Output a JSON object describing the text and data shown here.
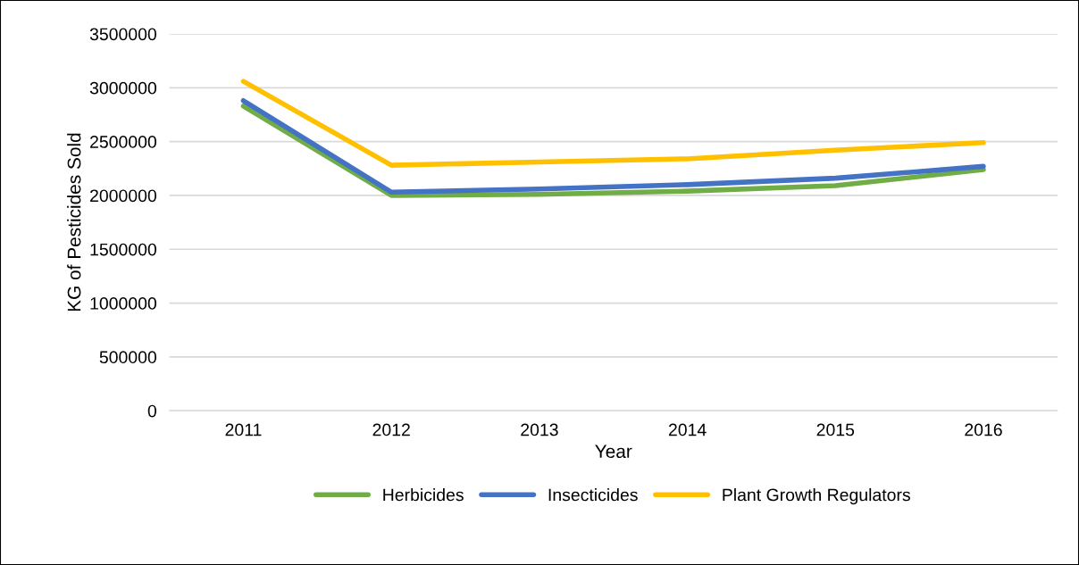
{
  "chart_data": {
    "type": "line",
    "xlabel": "Year",
    "ylabel": "KG of Pesticides Sold",
    "categories": [
      "2011",
      "2012",
      "2013",
      "2014",
      "2015",
      "2016"
    ],
    "series": [
      {
        "name": "Herbicides",
        "color": "#70ad47",
        "values": [
          2830000,
          2000000,
          2010000,
          2040000,
          2090000,
          2240000
        ]
      },
      {
        "name": "Insecticides",
        "color": "#4472c4",
        "values": [
          2880000,
          2030000,
          2060000,
          2100000,
          2160000,
          2270000
        ]
      },
      {
        "name": "Plant Growth Regulators",
        "color": "#ffc000",
        "values": [
          3060000,
          2280000,
          2310000,
          2340000,
          2420000,
          2490000
        ]
      }
    ],
    "ylim": [
      0,
      3500000
    ],
    "yticks": [
      0,
      500000,
      1000000,
      1500000,
      2000000,
      2500000,
      3000000,
      3500000
    ],
    "grid": "y",
    "legend": "bottom",
    "marker": "none",
    "line_style": "solid"
  }
}
